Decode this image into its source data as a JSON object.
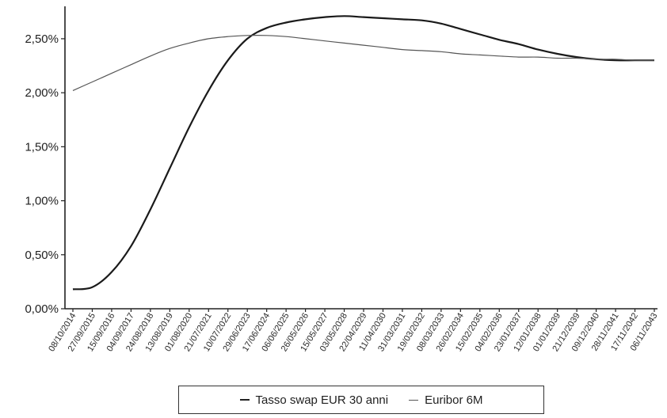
{
  "chart_data": {
    "type": "line",
    "title": "",
    "xlabel": "",
    "ylabel": "",
    "ylim": [
      0,
      2.8
    ],
    "y_ticks": [
      "0,00%",
      "0,50%",
      "1,00%",
      "1,50%",
      "2,00%",
      "2,50%"
    ],
    "y_tick_values": [
      0,
      0.5,
      1.0,
      1.5,
      2.0,
      2.5
    ],
    "x": [
      "08/10/2014",
      "27/09/2015",
      "15/09/2016",
      "04/09/2017",
      "24/08/2018",
      "13/08/2019",
      "01/08/2020",
      "21/07/2021",
      "10/07/2022",
      "29/06/2023",
      "17/06/2024",
      "06/06/2025",
      "26/05/2026",
      "15/05/2027",
      "03/05/2028",
      "22/04/2029",
      "11/04/2030",
      "31/03/2031",
      "19/03/2032",
      "08/03/2033",
      "26/02/2034",
      "15/02/2035",
      "04/02/2036",
      "23/01/2037",
      "12/01/2038",
      "01/01/2039",
      "21/12/2039",
      "09/12/2040",
      "28/11/2041",
      "17/11/2042",
      "06/11/2043"
    ],
    "legend_position": "bottom",
    "grid": false,
    "series": [
      {
        "name": "Tasso swap EUR 30 anni",
        "color": "#1a1a1a",
        "values": [
          0.18,
          0.2,
          0.34,
          0.58,
          0.92,
          1.3,
          1.68,
          2.02,
          2.3,
          2.5,
          2.6,
          2.65,
          2.68,
          2.7,
          2.71,
          2.7,
          2.69,
          2.68,
          2.67,
          2.64,
          2.59,
          2.54,
          2.49,
          2.45,
          2.4,
          2.36,
          2.33,
          2.31,
          2.3,
          2.3,
          2.3
        ]
      },
      {
        "name": "Euribor 6M",
        "color": "#555555",
        "values": [
          2.02,
          2.1,
          2.18,
          2.26,
          2.34,
          2.41,
          2.46,
          2.5,
          2.52,
          2.53,
          2.53,
          2.52,
          2.5,
          2.48,
          2.46,
          2.44,
          2.42,
          2.4,
          2.39,
          2.38,
          2.36,
          2.35,
          2.34,
          2.33,
          2.33,
          2.32,
          2.32,
          2.31,
          2.31,
          2.3,
          2.3
        ]
      }
    ]
  }
}
